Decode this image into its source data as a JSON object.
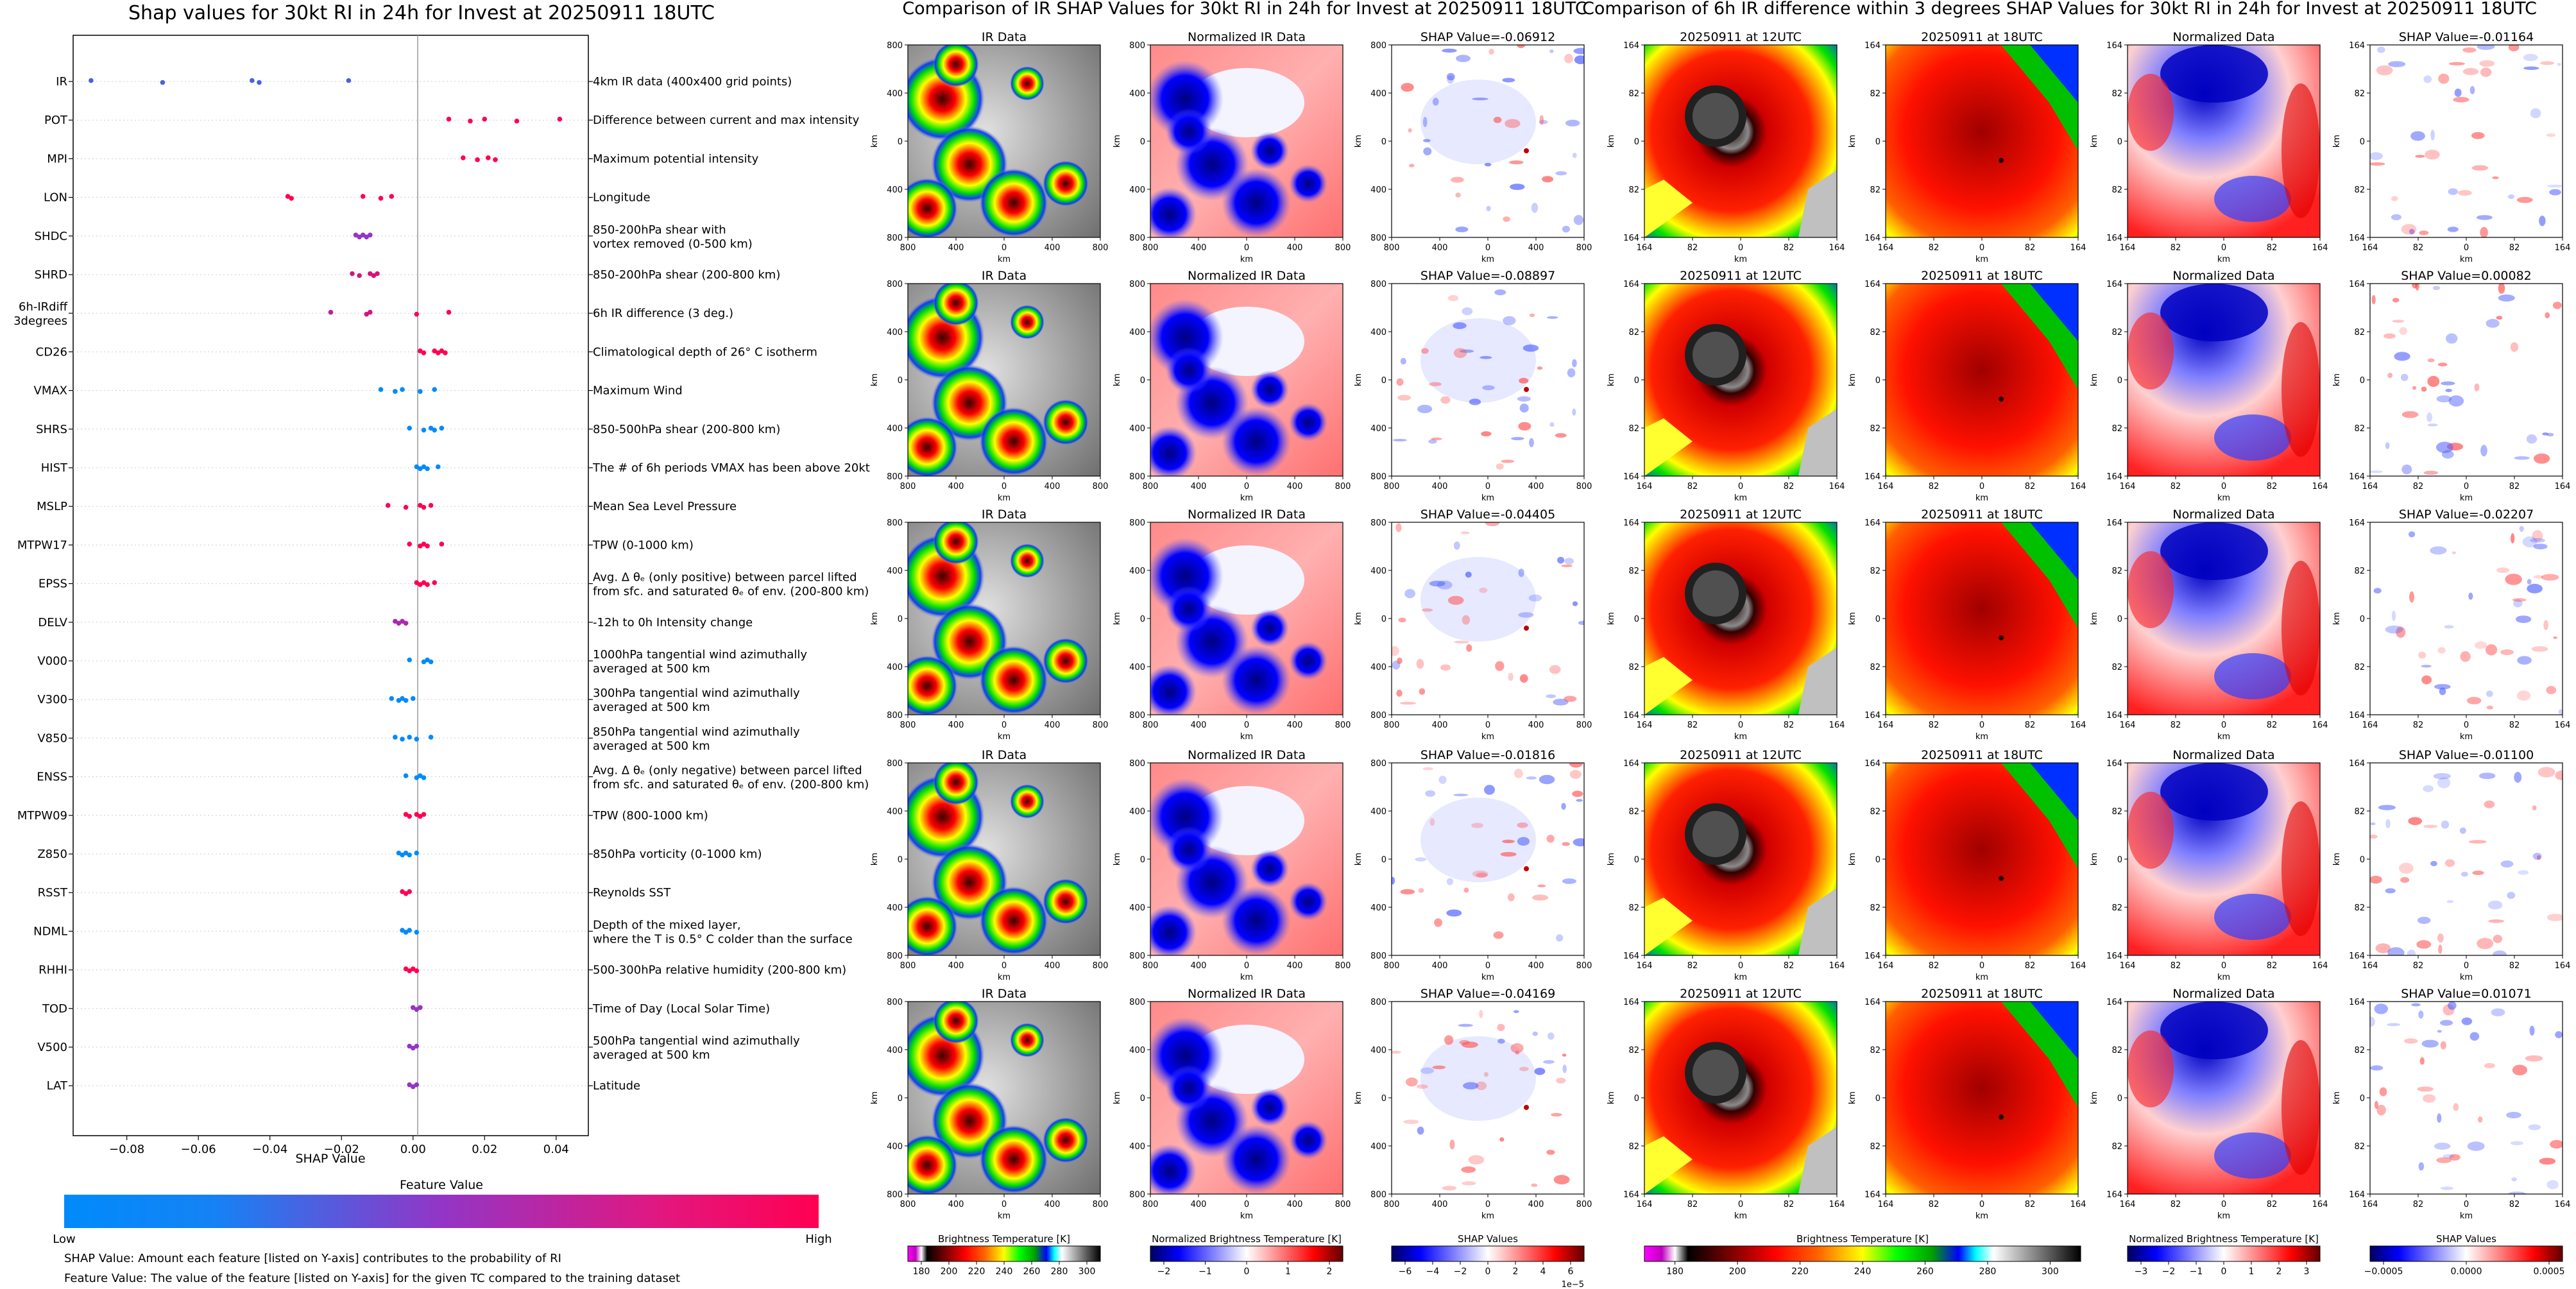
{
  "titles": {
    "shap": "Shap values for 30kt RI in 24h for Invest at 20250911 18UTC",
    "ir": "Comparison of IR SHAP Values for 30kt RI in 24h for Invest at 20250911 18UTC",
    "diff": "Comparison of 6h IR difference within 3 degrees SHAP Values for 30kt RI in 24h for Invest at 20250911 18UTC"
  },
  "chart_data": [
    {
      "type": "scatter",
      "title": "Shap values for 30kt RI in 24h for Invest at 20250911 18UTC",
      "xlabel": "SHAP Value",
      "xlim": [
        -0.095,
        0.049
      ],
      "xticks": [
        -0.08,
        -0.06,
        -0.04,
        -0.02,
        0.0,
        0.02,
        0.04
      ],
      "xtick_labels": [
        "−0.08",
        "−0.06",
        "−0.04",
        "−0.02",
        "0.00",
        "0.02",
        "0.04"
      ],
      "colorbar": {
        "title": "Feature Value",
        "low": "Low",
        "high": "High",
        "low_color": "#008bfb",
        "high_color": "#ff0052"
      },
      "notes": [
        "SHAP Value: Amount each feature [listed on Y-axis] contributes to the probability of RI",
        "Feature Value: The value of the feature [listed on Y-axis] for the given TC compared to the training dataset"
      ],
      "features": [
        {
          "code": "IR",
          "desc": [
            "4km IR data (400x400 grid points)"
          ],
          "points": [
            [
              -0.09,
              0.25
            ],
            [
              -0.07,
              0.25
            ],
            [
              -0.045,
              0.25
            ],
            [
              -0.043,
              0.25
            ],
            [
              -0.018,
              0.25
            ]
          ]
        },
        {
          "code": "POT",
          "desc": [
            "Difference between current and max intensity"
          ],
          "points": [
            [
              0.01,
              1
            ],
            [
              0.016,
              1
            ],
            [
              0.02,
              1
            ],
            [
              0.029,
              1
            ],
            [
              0.041,
              1
            ]
          ]
        },
        {
          "code": "MPI",
          "desc": [
            "Maximum potential intensity"
          ],
          "points": [
            [
              0.014,
              1
            ],
            [
              0.018,
              1
            ],
            [
              0.021,
              1
            ],
            [
              0.023,
              1
            ]
          ]
        },
        {
          "code": "LON",
          "desc": [
            "Longitude"
          ],
          "points": [
            [
              -0.035,
              1
            ],
            [
              -0.034,
              1
            ],
            [
              -0.014,
              1
            ],
            [
              -0.009,
              1
            ],
            [
              -0.006,
              1
            ]
          ]
        },
        {
          "code": "SHDC",
          "desc": [
            "850-200hPa shear with",
            "vortex removed (0-500 km)"
          ],
          "points": [
            [
              -0.016,
              0.5
            ],
            [
              -0.015,
              0.5
            ],
            [
              -0.014,
              0.5
            ],
            [
              -0.013,
              0.5
            ],
            [
              -0.012,
              0.5
            ]
          ]
        },
        {
          "code": "SHRD",
          "desc": [
            "850-200hPa shear (200-800 km)"
          ],
          "points": [
            [
              -0.017,
              0.8
            ],
            [
              -0.015,
              0.8
            ],
            [
              -0.012,
              0.85
            ],
            [
              -0.011,
              0.85
            ],
            [
              -0.01,
              0.85
            ]
          ]
        },
        {
          "code": "6h-IRdiff",
          "code2": "3degrees",
          "desc": [
            "6h IR difference (3 deg.)"
          ],
          "points": [
            [
              -0.023,
              0.7
            ],
            [
              -0.013,
              0.8
            ],
            [
              -0.012,
              0.8
            ],
            [
              0.001,
              1
            ],
            [
              0.01,
              1
            ]
          ]
        },
        {
          "code": "CD26",
          "desc": [
            "Climatological depth of 26° C isotherm"
          ],
          "points": [
            [
              0.002,
              1
            ],
            [
              0.003,
              1
            ],
            [
              0.006,
              1
            ],
            [
              0.007,
              1
            ],
            [
              0.008,
              1
            ],
            [
              0.009,
              1
            ]
          ]
        },
        {
          "code": "VMAX",
          "desc": [
            "Maximum Wind"
          ],
          "points": [
            [
              -0.009,
              0
            ],
            [
              -0.005,
              0
            ],
            [
              -0.003,
              0
            ],
            [
              0.002,
              0
            ],
            [
              0.006,
              0
            ]
          ]
        },
        {
          "code": "SHRS",
          "desc": [
            "850-500hPa shear (200-800 km)"
          ],
          "points": [
            [
              -0.001,
              0
            ],
            [
              0.003,
              0
            ],
            [
              0.005,
              0
            ],
            [
              0.006,
              0
            ],
            [
              0.008,
              0
            ]
          ]
        },
        {
          "code": "HIST",
          "desc": [
            "The # of 6h periods VMAX has been above 20kt"
          ],
          "points": [
            [
              0.001,
              0
            ],
            [
              0.002,
              0
            ],
            [
              0.003,
              0
            ],
            [
              0.004,
              0
            ],
            [
              0.007,
              0
            ]
          ]
        },
        {
          "code": "MSLP",
          "desc": [
            "Mean Sea Level Pressure"
          ],
          "points": [
            [
              -0.007,
              1
            ],
            [
              -0.002,
              1
            ],
            [
              0.002,
              1
            ],
            [
              0.003,
              1
            ],
            [
              0.005,
              1
            ]
          ]
        },
        {
          "code": "MTPW17",
          "desc": [
            "TPW (0-1000 km)"
          ],
          "points": [
            [
              -0.001,
              1
            ],
            [
              0.002,
              1
            ],
            [
              0.003,
              1
            ],
            [
              0.004,
              1
            ],
            [
              0.008,
              1
            ]
          ]
        },
        {
          "code": "EPSS",
          "desc": [
            "Avg. Δ θₑ (only positive) between parcel lifted",
            "from sfc. and saturated θₑ of env. (200-800 km)"
          ],
          "points": [
            [
              0.001,
              1
            ],
            [
              0.002,
              1
            ],
            [
              0.003,
              1
            ],
            [
              0.004,
              1
            ],
            [
              0.006,
              1
            ]
          ]
        },
        {
          "code": "DELV",
          "desc": [
            "-12h to 0h Intensity change"
          ],
          "points": [
            [
              -0.005,
              0.6
            ],
            [
              -0.004,
              0.6
            ],
            [
              -0.003,
              0.6
            ],
            [
              -0.002,
              0.6
            ]
          ]
        },
        {
          "code": "V000",
          "desc": [
            "1000hPa tangential wind azimuthally",
            "averaged at 500 km"
          ],
          "points": [
            [
              -0.001,
              0
            ],
            [
              0.003,
              0
            ],
            [
              0.004,
              0
            ],
            [
              0.005,
              0
            ]
          ]
        },
        {
          "code": "V300",
          "desc": [
            "300hPa tangential wind azimuthally",
            "averaged at 500 km"
          ],
          "points": [
            [
              -0.006,
              0
            ],
            [
              -0.004,
              0
            ],
            [
              -0.003,
              0
            ],
            [
              -0.002,
              0
            ],
            [
              0.0,
              0
            ]
          ]
        },
        {
          "code": "V850",
          "desc": [
            "850hPa tangential wind azimuthally",
            "averaged at 500 km"
          ],
          "points": [
            [
              -0.005,
              0
            ],
            [
              -0.003,
              0
            ],
            [
              -0.001,
              0
            ],
            [
              0.001,
              0
            ],
            [
              0.005,
              0
            ]
          ]
        },
        {
          "code": "ENSS",
          "desc": [
            "Avg. Δ θₑ (only negative) between parcel lifted",
            "from sfc. and saturated θₑ of env. (200-800 km)"
          ],
          "points": [
            [
              -0.002,
              0
            ],
            [
              0.001,
              0
            ],
            [
              0.002,
              0
            ],
            [
              0.003,
              0
            ]
          ]
        },
        {
          "code": "MTPW09",
          "desc": [
            "TPW (800-1000 km)"
          ],
          "points": [
            [
              -0.002,
              1
            ],
            [
              -0.001,
              1
            ],
            [
              0.001,
              1
            ],
            [
              0.002,
              1
            ],
            [
              0.003,
              1
            ]
          ]
        },
        {
          "code": "Z850",
          "desc": [
            "850hPa vorticity (0-1000 km)"
          ],
          "points": [
            [
              -0.004,
              0
            ],
            [
              -0.003,
              0
            ],
            [
              -0.002,
              0
            ],
            [
              -0.001,
              0
            ],
            [
              0.001,
              0
            ]
          ]
        },
        {
          "code": "RSST",
          "desc": [
            "Reynolds SST"
          ],
          "points": [
            [
              -0.003,
              1
            ],
            [
              -0.002,
              1
            ],
            [
              -0.001,
              1
            ]
          ]
        },
        {
          "code": "NDML",
          "desc": [
            "Depth of the mixed layer,",
            "where the T is 0.5° C colder than the surface"
          ],
          "points": [
            [
              -0.003,
              0
            ],
            [
              -0.002,
              0
            ],
            [
              -0.001,
              0
            ],
            [
              0.001,
              0
            ]
          ]
        },
        {
          "code": "RHHI",
          "desc": [
            "500-300hPa relative humidity (200-800 km)"
          ],
          "points": [
            [
              -0.002,
              1
            ],
            [
              -0.001,
              1
            ],
            [
              0.0,
              1
            ],
            [
              0.001,
              1
            ]
          ]
        },
        {
          "code": "TOD",
          "desc": [
            "Time of Day (Local Solar Time)"
          ],
          "points": [
            [
              0.0,
              0.5
            ],
            [
              0.001,
              0.5
            ],
            [
              0.002,
              0.5
            ]
          ]
        },
        {
          "code": "V500",
          "desc": [
            "500hPa tangential wind azimuthally",
            "averaged at 500 km"
          ],
          "points": [
            [
              -0.001,
              0.5
            ],
            [
              0.0,
              0.5
            ],
            [
              0.001,
              0.5
            ]
          ]
        },
        {
          "code": "LAT",
          "desc": [
            "Latitude"
          ],
          "points": [
            [
              -0.001,
              0.5
            ],
            [
              0.0,
              0.5
            ],
            [
              0.001,
              0.5
            ]
          ]
        }
      ]
    },
    {
      "type": "heatmap",
      "title": "Comparison of IR SHAP Values for 30kt RI in 24h for Invest at 20250911 18UTC",
      "panel_titles": [
        "IR Data",
        "Normalized IR Data"
      ],
      "shap_values": [
        "-0.06912",
        "-0.08897",
        "-0.04405",
        "-0.01816",
        "-0.04169"
      ],
      "shap_prefix": "SHAP Value=",
      "axis_label": "km",
      "xtick_labels": [
        "800",
        "400",
        "0",
        "400",
        "800"
      ],
      "ytick_labels": [
        "800",
        "400",
        "0",
        "400",
        "800"
      ],
      "colorbars": [
        {
          "label": "Brightness Temperature [K]",
          "ticks": [
            "180",
            "200",
            "220",
            "240",
            "260",
            "280",
            "300"
          ],
          "colormap": "ir"
        },
        {
          "label": "Normalized Brightness Temperature [K]",
          "ticks": [
            "−2",
            "−1",
            "0",
            "1",
            "2"
          ],
          "colormap": "bwr"
        },
        {
          "label": "SHAP Values",
          "ticks": [
            "−6",
            "−4",
            "−2",
            "0",
            "2",
            "4",
            "6"
          ],
          "exponent": "1e−5",
          "colormap": "bwr"
        }
      ]
    },
    {
      "type": "heatmap",
      "title": "Comparison of 6h IR difference within 3 degrees SHAP Values for 30kt RI in 24h for Invest at 20250911 18UTC",
      "panel_titles": [
        "20250911 at 12UTC",
        "20250911 at 18UTC",
        "Normalized Data"
      ],
      "shap_values": [
        "-0.01164",
        "0.00082",
        "-0.02207",
        "-0.01100",
        "0.01071"
      ],
      "shap_prefix": "SHAP Value=",
      "axis_label": "km",
      "xtick_labels": [
        "164",
        "82",
        "0",
        "82",
        "164"
      ],
      "ytick_labels": [
        "164",
        "82",
        "0",
        "82",
        "164"
      ],
      "colorbars": [
        {
          "label": "Brightness Temperature [K]",
          "ticks": [
            "180",
            "200",
            "220",
            "240",
            "260",
            "280",
            "300"
          ],
          "colormap": "ir"
        },
        {
          "label": "Normalized Brightness Temperature [K]",
          "ticks": [
            "−3",
            "−2",
            "−1",
            "0",
            "1",
            "2",
            "3"
          ],
          "colormap": "bwr"
        },
        {
          "label": "SHAP Values",
          "ticks": [
            "−0.0005",
            "0.0000",
            "0.0005"
          ],
          "colormap": "bwr"
        }
      ]
    }
  ]
}
